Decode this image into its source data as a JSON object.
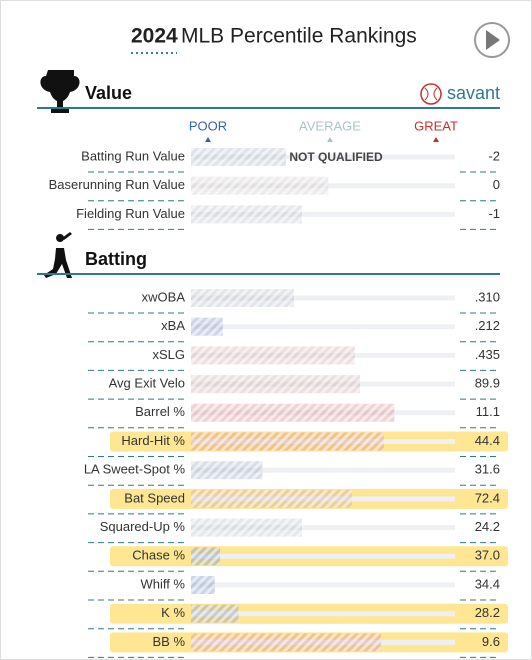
{
  "header": {
    "year": "2024",
    "title": "MLB Percentile Rankings"
  },
  "scale": {
    "poor": "POOR",
    "average": "AVERAGE",
    "great": "GREAT",
    "xlim": [
      0,
      100
    ]
  },
  "sections": [
    {
      "title": "Value",
      "brand": "savant",
      "note": "NOT QUALIFIED",
      "rows": [
        {
          "label": "Batting Run Value",
          "value": "-2",
          "percentile": 36,
          "highlighted": false
        },
        {
          "label": "Baserunning Run Value",
          "value": "0",
          "percentile": 52,
          "highlighted": false
        },
        {
          "label": "Fielding Run Value",
          "value": "-1",
          "percentile": 42,
          "highlighted": false
        }
      ]
    },
    {
      "title": "Batting",
      "rows": [
        {
          "label": "xwOBA",
          "value": ".310",
          "percentile": 39,
          "highlighted": false
        },
        {
          "label": "xBA",
          "value": ".212",
          "percentile": 12,
          "highlighted": false
        },
        {
          "label": "xSLG",
          "value": ".435",
          "percentile": 62,
          "highlighted": false
        },
        {
          "label": "Avg Exit Velo",
          "value": "89.9",
          "percentile": 64,
          "highlighted": false
        },
        {
          "label": "Barrel %",
          "value": "11.1",
          "percentile": 77,
          "highlighted": false
        },
        {
          "label": "Hard-Hit %",
          "value": "44.4",
          "percentile": 73,
          "highlighted": true
        },
        {
          "label": "LA Sweet-Spot %",
          "value": "31.6",
          "percentile": 27,
          "highlighted": false
        },
        {
          "label": "Bat Speed",
          "value": "72.4",
          "percentile": 61,
          "highlighted": true
        },
        {
          "label": "Squared-Up %",
          "value": "24.2",
          "percentile": 42,
          "highlighted": false
        },
        {
          "label": "Chase %",
          "value": "37.0",
          "percentile": 11,
          "highlighted": true
        },
        {
          "label": "Whiff %",
          "value": "34.4",
          "percentile": 9,
          "highlighted": false
        },
        {
          "label": "K %",
          "value": "28.2",
          "percentile": 18,
          "highlighted": true
        },
        {
          "label": "BB %",
          "value": "9.6",
          "percentile": 72,
          "highlighted": true
        }
      ]
    }
  ]
}
